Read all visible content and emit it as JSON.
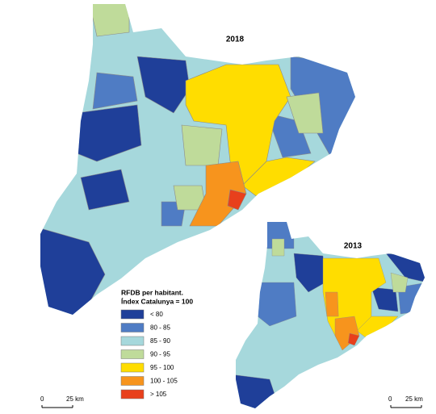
{
  "maps": [
    {
      "title": "2018"
    },
    {
      "title": "2013"
    }
  ],
  "legend": {
    "title": "RFDB per habitant.",
    "subtitle": "Índex Catalunya = 100",
    "items": [
      {
        "label": "< 80",
        "color": "#1f3f99"
      },
      {
        "label": "80 - 85",
        "color": "#4f7cc4"
      },
      {
        "label": "85 - 90",
        "color": "#a6d8dc"
      },
      {
        "label": "90 - 95",
        "color": "#bfdb9a"
      },
      {
        "label": "95 - 100",
        "color": "#ffdd00"
      },
      {
        "label": "100 - 105",
        "color": "#f7941d"
      },
      {
        "label": "> 105",
        "color": "#e8401c"
      }
    ]
  },
  "scale_bars": [
    {
      "start": "0",
      "end": "25 km"
    },
    {
      "start": "0",
      "end": "25 km"
    }
  ]
}
